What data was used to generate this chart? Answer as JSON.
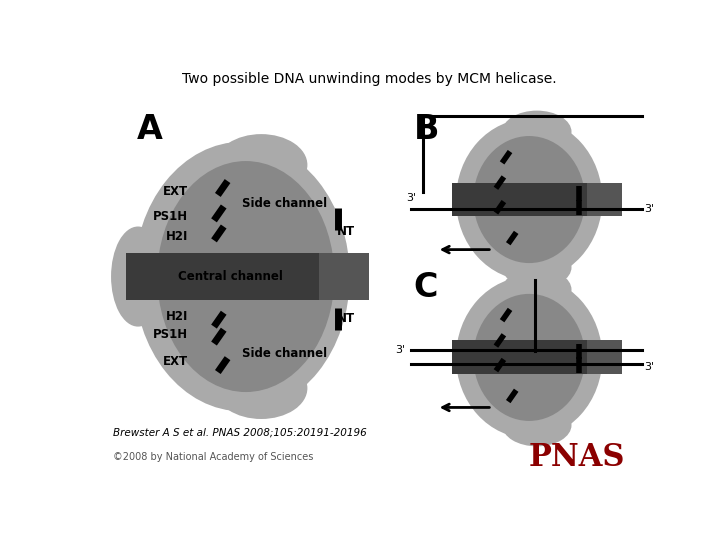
{
  "title": "Two possible DNA unwinding modes by MCM helicase.",
  "title_fontsize": 10,
  "citation": "Brewster A S et al. PNAS 2008;105:20191-20196",
  "copyright": "©2008 by National Academy of Sciences",
  "pnas_text": "PNAS",
  "bg_color": "#ffffff",
  "light_gray": "#aaaaaa",
  "mid_gray": "#888888",
  "dark_gray": "#555555",
  "darker_gray": "#3a3a3a",
  "black": "#000000",
  "pnas_color": "#8b0000"
}
